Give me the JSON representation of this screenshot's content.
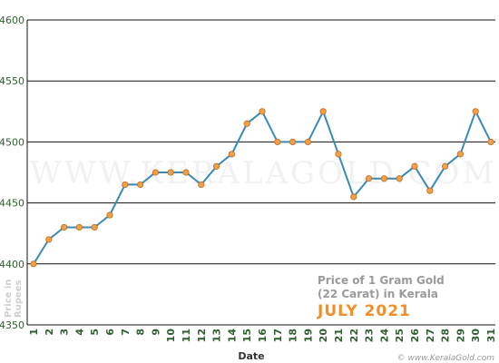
{
  "chart_data": {
    "type": "line",
    "title_line1": "Price of 1 Gram Gold",
    "title_line2": "(22 Carat) in Kerala",
    "subtitle": "JULY 2021",
    "xlabel": "Date",
    "ylabel_line1": "Price in",
    "ylabel_line2": "Rupees",
    "watermark": "WWW.KERALAGOLD.COM",
    "credit": "© www.KeralaGold.com",
    "ylim": [
      4350,
      4600
    ],
    "yticks": [
      4350,
      4400,
      4450,
      4500,
      4550,
      4600
    ],
    "grid": true,
    "line_color": "#3a8ab5",
    "marker_color": "#f0a048",
    "x": [
      "1",
      "2",
      "3",
      "4",
      "5",
      "6",
      "7",
      "8",
      "9",
      "10",
      "11",
      "12",
      "13",
      "14",
      "15",
      "16",
      "17",
      "18",
      "19",
      "20",
      "21",
      "22",
      "23",
      "24",
      "25",
      "26",
      "27",
      "28",
      "29",
      "30",
      "31"
    ],
    "values": [
      4400,
      4420,
      4430,
      4430,
      4430,
      4440,
      4465,
      4465,
      4475,
      4475,
      4475,
      4465,
      4480,
      4490,
      4515,
      4525,
      4500,
      4500,
      4500,
      4525,
      4490,
      4455,
      4470,
      4470,
      4470,
      4480,
      4460,
      4480,
      4490,
      4525,
      4500
    ]
  }
}
